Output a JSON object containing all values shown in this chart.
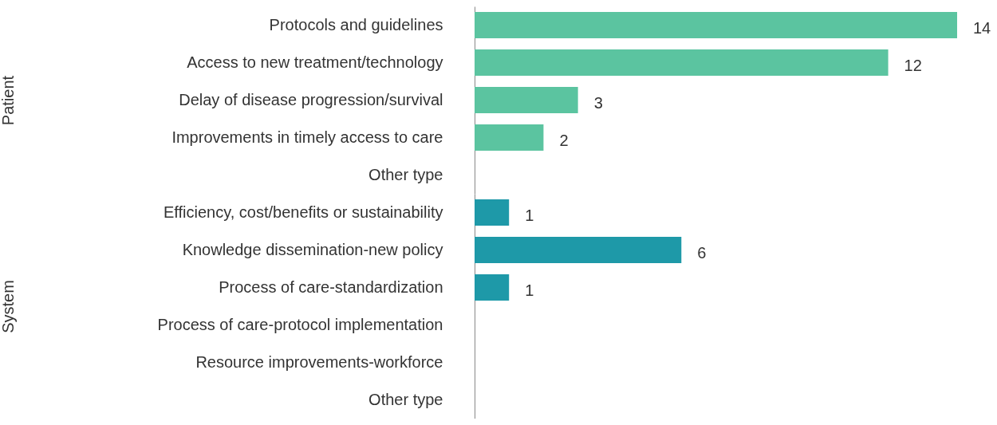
{
  "chart_data": [
    {
      "type": "bar",
      "orientation": "horizontal",
      "ylabel": "Patient",
      "categories": [
        "Protocols and guidelines",
        "Access to new treatment/technology",
        "Delay of disease progression/survival",
        "Improvements in timely access to care",
        "Other type"
      ],
      "values": [
        14,
        12,
        3,
        2,
        null
      ],
      "color": "#5bc4a0",
      "data_labels": true
    },
    {
      "type": "bar",
      "orientation": "horizontal",
      "ylabel": "System",
      "categories": [
        "Efficiency, cost/benefits or sustainability",
        "Knowledge dissemination-new policy",
        "Process of care-standardization",
        "Process of care-protocol implementation",
        "Resource improvements-workforce",
        "Other type"
      ],
      "values": [
        1,
        6,
        1,
        null,
        null,
        null
      ],
      "color": "#1e99a8",
      "data_labels": true
    }
  ]
}
